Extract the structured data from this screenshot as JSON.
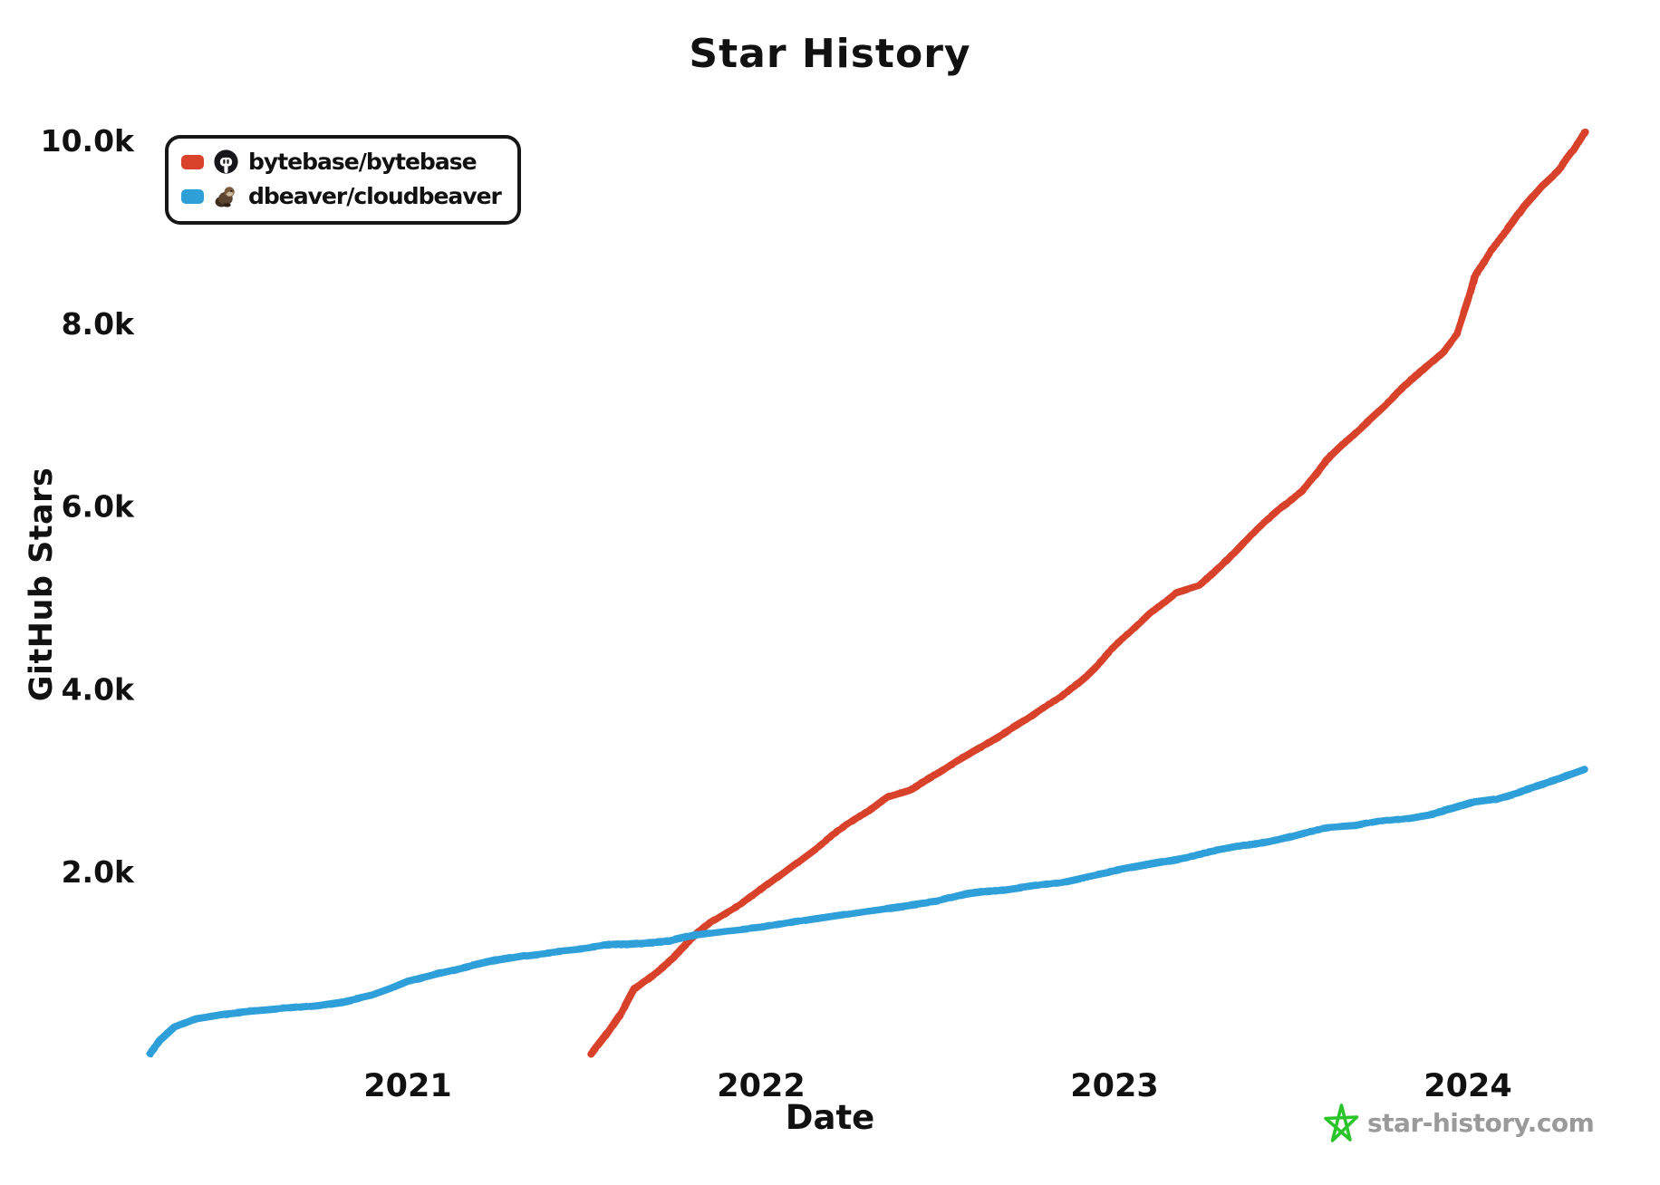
{
  "title": "Star History",
  "axes": {
    "x_label": "Date",
    "y_label": "GitHub Stars",
    "x_ticks": [
      {
        "label": "2021",
        "year": 2021
      },
      {
        "label": "2022",
        "year": 2022
      },
      {
        "label": "2023",
        "year": 2023
      },
      {
        "label": "2024",
        "year": 2024
      }
    ],
    "y_ticks": [
      {
        "label": "2.0k",
        "value": 2000
      },
      {
        "label": "4.0k",
        "value": 4000
      },
      {
        "label": "6.0k",
        "value": 6000
      },
      {
        "label": "8.0k",
        "value": 8000
      },
      {
        "label": "10.0k",
        "value": 10000
      }
    ]
  },
  "legend": {
    "items": [
      {
        "repo": "bytebase/bytebase",
        "color": "#d9432c",
        "avatar_icon": "bytebase-logo"
      },
      {
        "repo": "dbeaver/cloudbeaver",
        "color": "#2f9fd8",
        "avatar_icon": "dbeaver-beaver-photo"
      }
    ]
  },
  "watermark": {
    "text": "star-history.com",
    "text_color": "#9a9a9a",
    "star_color": "#2bc42b"
  },
  "chart_data": {
    "type": "line",
    "title": "Star History",
    "xlabel": "Date",
    "ylabel": "GitHub Stars",
    "x_unit": "decimal_year",
    "xlim": [
      2020.27,
      2024.42
    ],
    "ylim": [
      0,
      10000
    ],
    "grid": false,
    "legend_position": "top-left",
    "series": [
      {
        "name": "bytebase/bytebase",
        "color": "#d9432c",
        "points": [
          [
            2021.52,
            0
          ],
          [
            2021.56,
            200
          ],
          [
            2021.6,
            430
          ],
          [
            2021.64,
            720
          ],
          [
            2021.7,
            900
          ],
          [
            2021.75,
            1060
          ],
          [
            2021.8,
            1250
          ],
          [
            2021.86,
            1450
          ],
          [
            2021.94,
            1640
          ],
          [
            2022.0,
            1820
          ],
          [
            2022.1,
            2110
          ],
          [
            2022.2,
            2400
          ],
          [
            2022.3,
            2670
          ],
          [
            2022.36,
            2830
          ],
          [
            2022.42,
            2900
          ],
          [
            2022.5,
            3080
          ],
          [
            2022.55,
            3200
          ],
          [
            2022.65,
            3420
          ],
          [
            2022.75,
            3650
          ],
          [
            2022.85,
            3920
          ],
          [
            2022.92,
            4150
          ],
          [
            2023.0,
            4450
          ],
          [
            2023.1,
            4820
          ],
          [
            2023.17,
            5040
          ],
          [
            2023.24,
            5120
          ],
          [
            2023.32,
            5420
          ],
          [
            2023.4,
            5750
          ],
          [
            2023.46,
            5950
          ],
          [
            2023.53,
            6150
          ],
          [
            2023.6,
            6500
          ],
          [
            2023.68,
            6800
          ],
          [
            2023.75,
            7050
          ],
          [
            2023.82,
            7300
          ],
          [
            2023.88,
            7520
          ],
          [
            2023.93,
            7700
          ],
          [
            2023.97,
            7900
          ],
          [
            2024.0,
            8250
          ],
          [
            2024.02,
            8520
          ],
          [
            2024.06,
            8780
          ],
          [
            2024.11,
            9000
          ],
          [
            2024.16,
            9280
          ],
          [
            2024.21,
            9500
          ],
          [
            2024.26,
            9680
          ],
          [
            2024.3,
            9880
          ],
          [
            2024.33,
            10090
          ]
        ]
      },
      {
        "name": "dbeaver/cloudbeaver",
        "color": "#2f9fd8",
        "points": [
          [
            2020.27,
            0
          ],
          [
            2020.3,
            160
          ],
          [
            2020.34,
            300
          ],
          [
            2020.4,
            390
          ],
          [
            2020.48,
            440
          ],
          [
            2020.56,
            470
          ],
          [
            2020.65,
            500
          ],
          [
            2020.75,
            540
          ],
          [
            2020.82,
            580
          ],
          [
            2020.9,
            650
          ],
          [
            2020.95,
            720
          ],
          [
            2021.0,
            800
          ],
          [
            2021.08,
            880
          ],
          [
            2021.16,
            950
          ],
          [
            2021.25,
            1030
          ],
          [
            2021.33,
            1080
          ],
          [
            2021.42,
            1120
          ],
          [
            2021.5,
            1150
          ],
          [
            2021.58,
            1190
          ],
          [
            2021.66,
            1215
          ],
          [
            2021.74,
            1230
          ],
          [
            2021.82,
            1300
          ],
          [
            2021.9,
            1340
          ],
          [
            2022.0,
            1380
          ],
          [
            2022.1,
            1450
          ],
          [
            2022.2,
            1510
          ],
          [
            2022.3,
            1570
          ],
          [
            2022.4,
            1620
          ],
          [
            2022.5,
            1670
          ],
          [
            2022.58,
            1750
          ],
          [
            2022.66,
            1790
          ],
          [
            2022.75,
            1840
          ],
          [
            2022.85,
            1900
          ],
          [
            2022.92,
            1960
          ],
          [
            2023.0,
            2020
          ],
          [
            2023.1,
            2090
          ],
          [
            2023.2,
            2160
          ],
          [
            2023.3,
            2230
          ],
          [
            2023.38,
            2290
          ],
          [
            2023.46,
            2360
          ],
          [
            2023.54,
            2440
          ],
          [
            2023.6,
            2480
          ],
          [
            2023.68,
            2500
          ],
          [
            2023.76,
            2560
          ],
          [
            2023.84,
            2600
          ],
          [
            2023.9,
            2640
          ],
          [
            2023.96,
            2700
          ],
          [
            2024.02,
            2770
          ],
          [
            2024.08,
            2800
          ],
          [
            2024.14,
            2870
          ],
          [
            2024.2,
            2940
          ],
          [
            2024.26,
            3010
          ],
          [
            2024.33,
            3110
          ]
        ]
      }
    ]
  }
}
